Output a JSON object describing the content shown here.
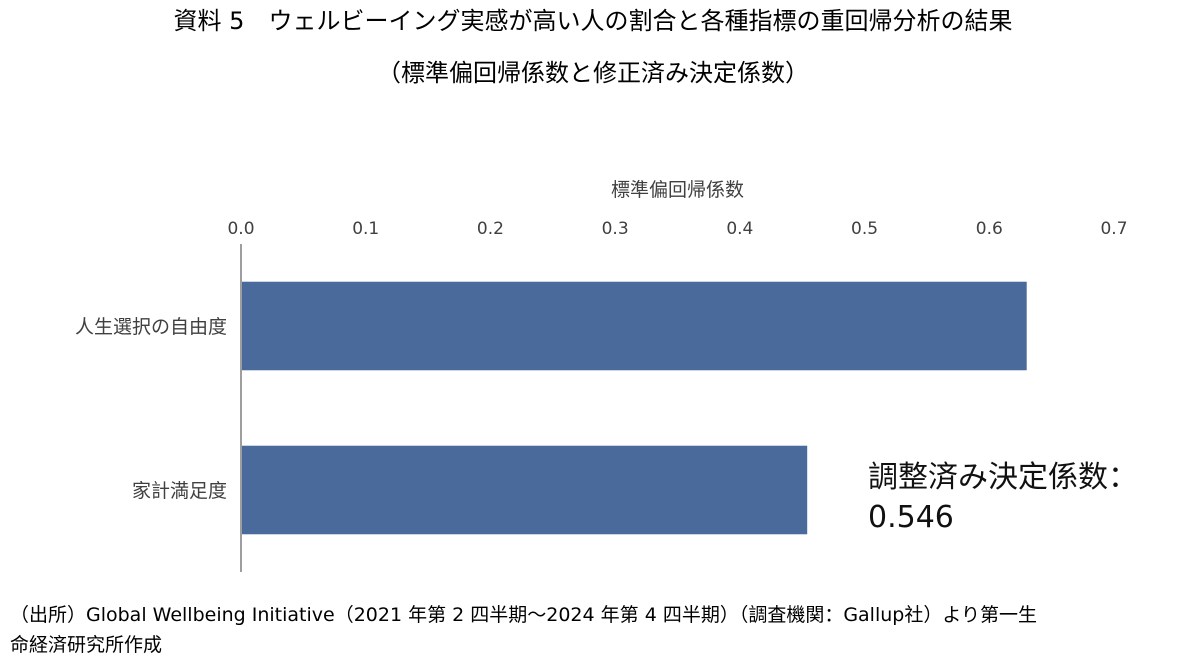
{
  "header": {
    "title": "資料 5　ウェルビーイング実感が高い人の割合と各種指標の重回帰分析の結果",
    "subtitle": "（標準偏回帰係数と修正済み決定係数）"
  },
  "annotation": {
    "r2_label": "調整済み決定係数：",
    "r2_value": "0.546"
  },
  "footer": {
    "source_line1": "（出所）Global Wellbeing Initiative（2021 年第 2 四半期～2024 年第 4 四半期）（調査機関：Gallup社）より第一生",
    "source_line2": "命経済研究所作成"
  },
  "colors": {
    "bar": "#4a6a9b",
    "axis": "#7f7f7f",
    "text": "#404040"
  },
  "chart_data": {
    "type": "bar",
    "orientation": "horizontal",
    "xlabel": "標準偏回帰係数",
    "xlim": [
      0.0,
      0.7
    ],
    "x_ticks": [
      "0.0",
      "0.1",
      "0.2",
      "0.3",
      "0.4",
      "0.5",
      "0.6",
      "0.7"
    ],
    "categories": [
      "人生選択の自由度",
      "家計満足度"
    ],
    "values": [
      0.63,
      0.454
    ],
    "grid": false
  }
}
